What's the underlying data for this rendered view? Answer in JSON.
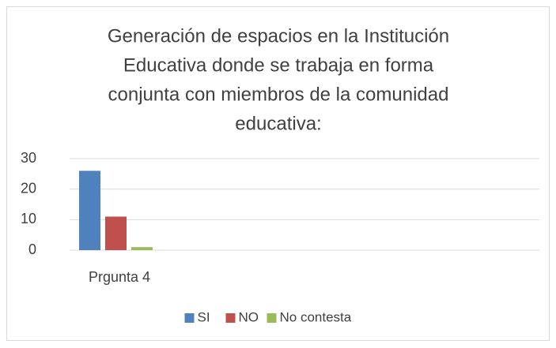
{
  "chart_data": {
    "type": "bar",
    "title": [
      "Generación de espacios en la Institución",
      "Educativa  donde se trabaja en forma",
      "conjunta con miembros de la comunidad",
      "educativa:"
    ],
    "categories": [
      "Prgunta 4"
    ],
    "series": [
      {
        "name": "SI",
        "color": "#4f81bd",
        "values": [
          26
        ]
      },
      {
        "name": "NO",
        "color": "#c0504d",
        "values": [
          11
        ]
      },
      {
        "name": "No contesta",
        "color": "#9bbb59",
        "values": [
          1
        ]
      }
    ],
    "ylim": [
      0,
      30
    ],
    "yticks": [
      0,
      10,
      20,
      30
    ],
    "grid": true,
    "legend": "bottom"
  }
}
